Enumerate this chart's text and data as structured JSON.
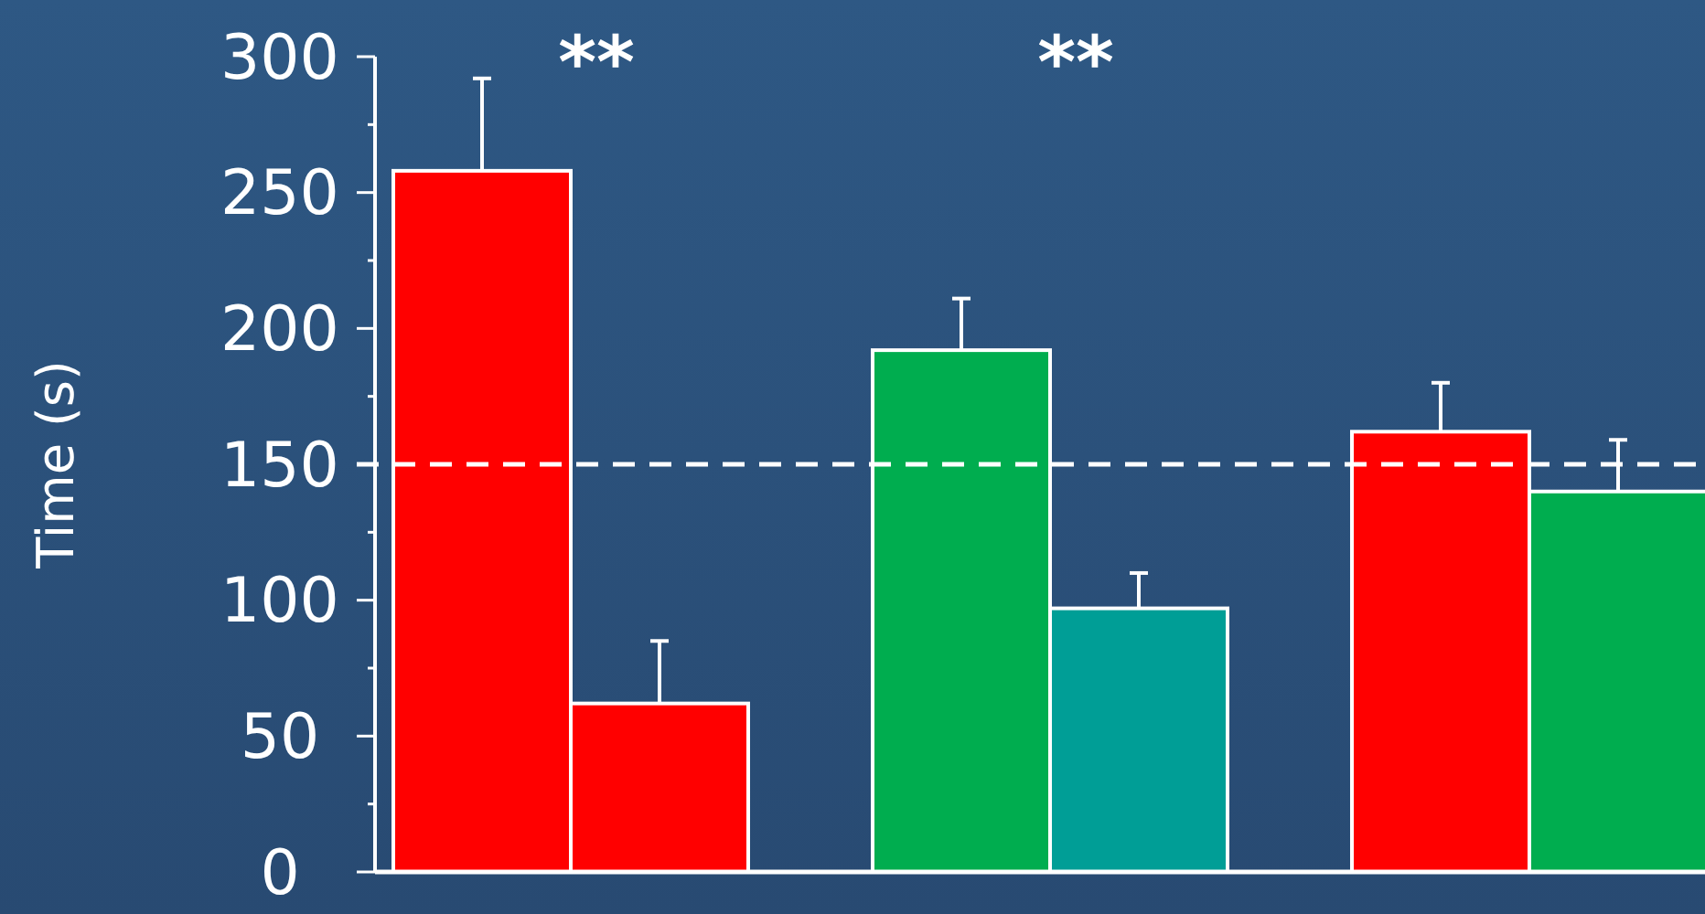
{
  "chart_data": {
    "type": "bar",
    "ylabel": "Time (s)",
    "categories": [
      null,
      null,
      null,
      null,
      null,
      null
    ],
    "values": [
      258,
      62,
      192,
      97,
      162,
      140
    ],
    "colors": [
      "#ff0000",
      "#ff0000",
      "#00ad4f",
      "#009e96",
      "#ff0000",
      "#00ad4f"
    ],
    "errors": [
      [
        258,
        292
      ],
      [
        62,
        85
      ],
      [
        192,
        211
      ],
      [
        97,
        110
      ],
      [
        162,
        180
      ],
      [
        140,
        159
      ]
    ],
    "ylim": [
      0,
      300
    ],
    "yticks": [
      0,
      {
        "value": 25,
        "label": null
      },
      50,
      {
        "value": 75,
        "label": null
      },
      100,
      {
        "value": 125,
        "label": null
      },
      150,
      {
        "value": 175,
        "label": null
      },
      200,
      {
        "value": 225,
        "label": null
      },
      250,
      {
        "value": 275,
        "label": null
      },
      300
    ],
    "ref_lines": [
      {
        "axis": "y",
        "value": 150,
        "color": "#ffffff",
        "line_style": "dashed"
      }
    ],
    "annotations": [
      "**",
      "**"
    ],
    "grid": false
  }
}
